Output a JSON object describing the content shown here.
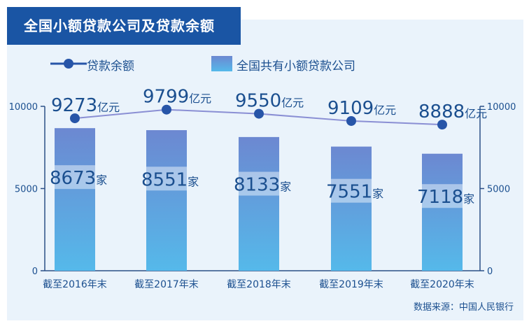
{
  "title": "全国小额贷款公司及贷款余额",
  "source": "数据来源：中国人民银行",
  "colors": {
    "banner": "#1a55a4",
    "panel": "#eaf3fb",
    "line": "#8a8fd4",
    "point": "#2755a8",
    "bar_top": "#6c88d1",
    "bar_bottom": "#55b9ea",
    "text": "#1b4f8f"
  },
  "chart_data": {
    "type": "bar+line",
    "categories": [
      "截至2016年末",
      "截至2017年末",
      "截至2018年末",
      "截至2019年末",
      "截至2020年末"
    ],
    "series": [
      {
        "name": "全国共有小额贷款公司",
        "type": "bar",
        "values": [
          8673,
          8551,
          8133,
          7551,
          7118
        ],
        "value_unit": "家",
        "axis": "left"
      },
      {
        "name": "贷款余额",
        "type": "line",
        "values": [
          9273,
          9799,
          9550,
          9109,
          8888
        ],
        "value_unit": "亿元",
        "axis": "right"
      }
    ],
    "y_left": {
      "range": [
        0,
        10000
      ],
      "ticks": [
        "0",
        "5000",
        "10000"
      ]
    },
    "y_right": {
      "range": [
        0,
        10000
      ],
      "ticks": [
        "0",
        "5000",
        "10000"
      ]
    },
    "legend_position": "top-left"
  }
}
